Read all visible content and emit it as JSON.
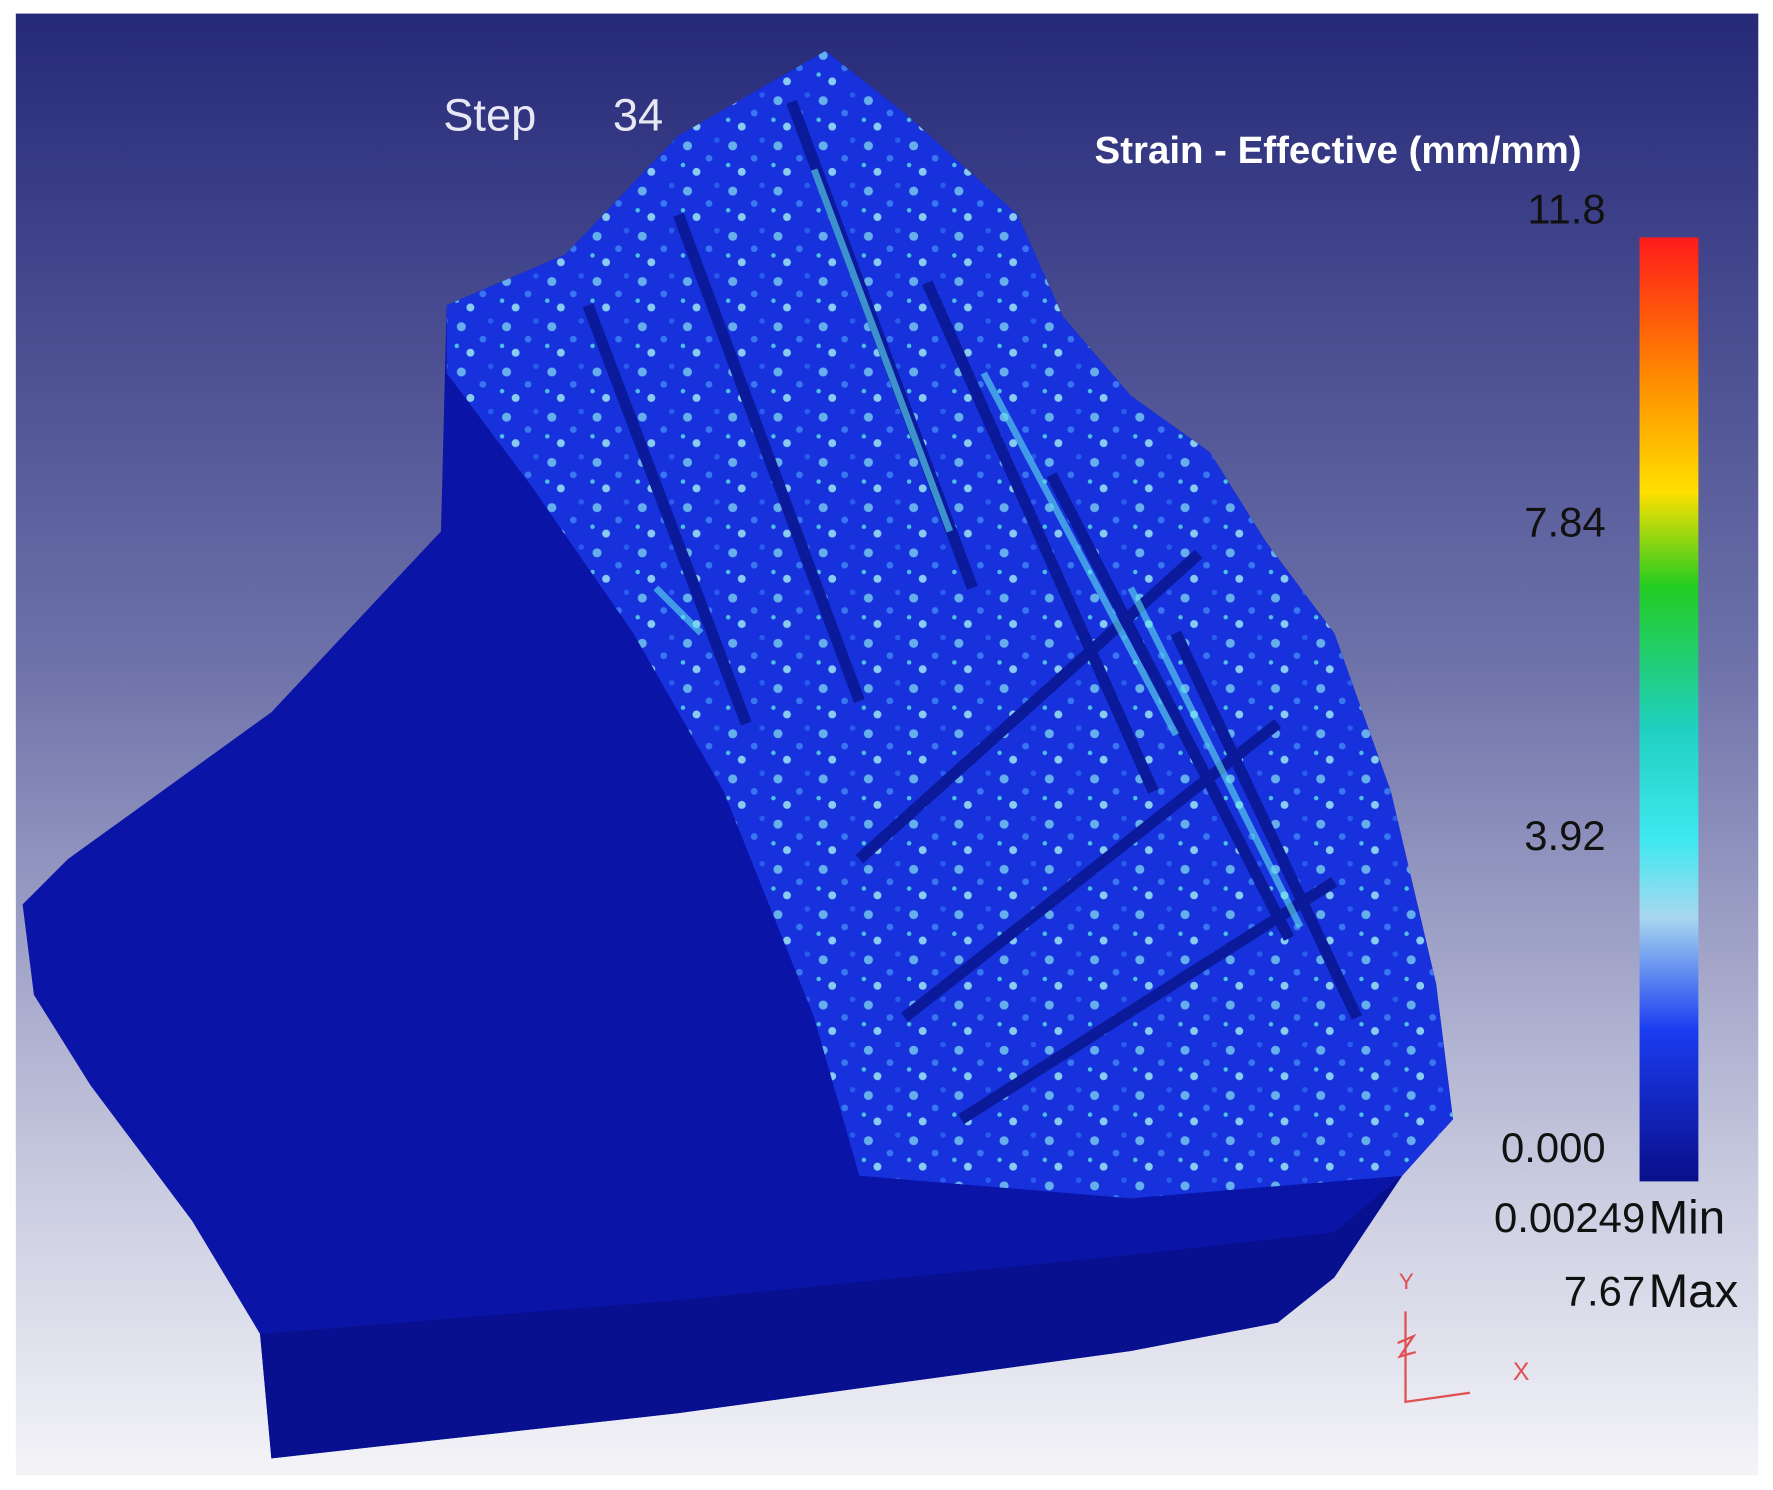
{
  "viewport": {
    "step_label": "Step",
    "step_number": "34"
  },
  "legend": {
    "title": "Strain - Effective (mm/mm)",
    "ticks": [
      "11.8",
      "7.84",
      "3.92",
      "0.000"
    ],
    "min_value": "0.00249",
    "min_label": "Min",
    "max_value": "7.67",
    "max_label": "Max"
  },
  "triad": {
    "y_label": "Y",
    "x_label": "X"
  }
}
